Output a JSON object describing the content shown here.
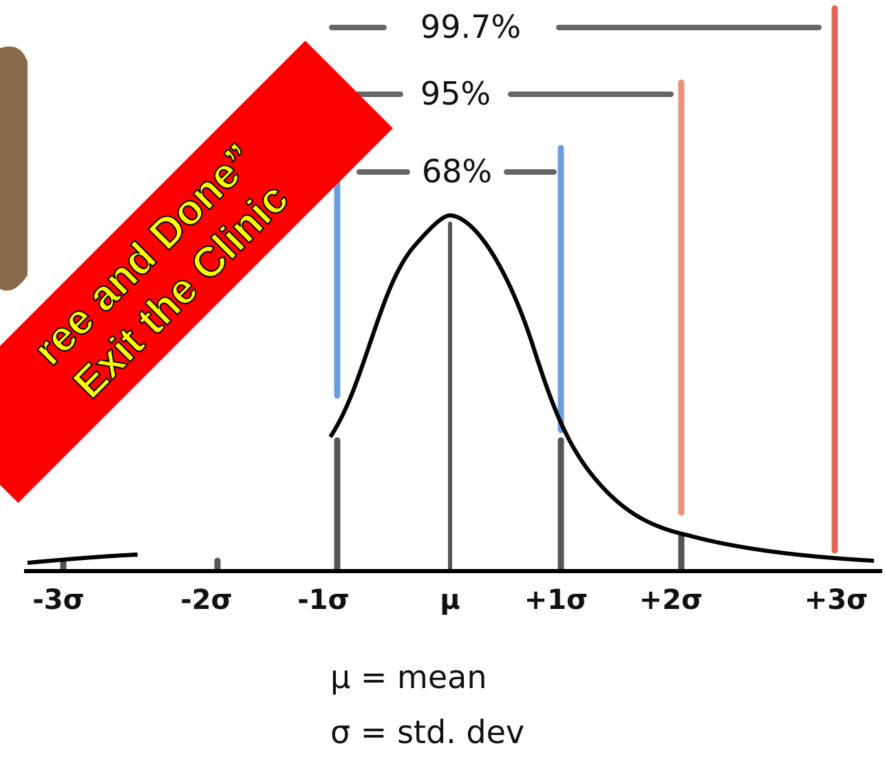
{
  "intervals": [
    {
      "label": "99.7%"
    },
    {
      "label": "95%"
    },
    {
      "label": "68%"
    }
  ],
  "axis_labels": [
    "-3σ",
    "-2σ",
    "-1σ",
    "μ",
    "+1σ",
    "+2σ",
    "+3σ"
  ],
  "legend": [
    "μ = mean",
    "σ = std. dev"
  ],
  "banner": {
    "line1": "ree and Done”",
    "line2": "Exit the Clinic"
  }
}
